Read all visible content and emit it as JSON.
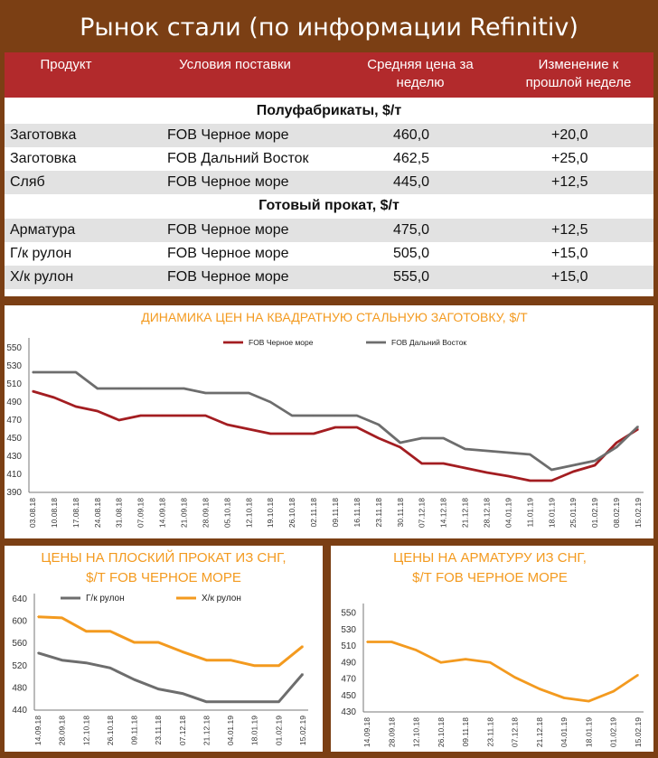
{
  "title": "Рынок стали (по информации Refinitiv)",
  "table": {
    "headers": [
      "Продукт",
      "Условия поставки",
      "Средняя цена за неделю",
      "Изменение к прошлой неделе"
    ],
    "sections": [
      {
        "label": "Полуфабрикаты, $/т",
        "rows": [
          [
            "Заготовка",
            "FOB Черное море",
            "460,0",
            "+20,0"
          ],
          [
            "Заготовка",
            "FOB Дальний Восток",
            "462,5",
            "+25,0"
          ],
          [
            "Сляб",
            "FOB Черное море",
            "445,0",
            "+12,5"
          ]
        ]
      },
      {
        "label": "Готовый прокат, $/т",
        "rows": [
          [
            "Арматура",
            "FOB Черное море",
            "475,0",
            "+12,5"
          ],
          [
            "Г/к рулон",
            "FOB Черное море",
            "505,0",
            "+15,0"
          ],
          [
            "Х/к рулон",
            "FOB Черное море",
            "555,0",
            "+15,0"
          ]
        ]
      }
    ]
  },
  "colors": {
    "header_red": "#b22a2c",
    "orange": "#f39a1f",
    "dark_red": "#a31d21",
    "gray": "#6d6d6d",
    "frame": "#7b3f14"
  },
  "chart_data": [
    {
      "type": "line",
      "title": "ДИНАМИКА ЦЕН НА КВАДРАТНУЮ СТАЛЬНУЮ ЗАГОТОВКУ, $/Т",
      "x": [
        "03.08.18",
        "10.08.18",
        "17.08.18",
        "24.08.18",
        "31.08.18",
        "07.09.18",
        "14.09.18",
        "21.09.18",
        "28.09.18",
        "05.10.18",
        "12.10.18",
        "19.10.18",
        "26.10.18",
        "02.11.18",
        "09.11.18",
        "16.11.18",
        "23.11.18",
        "30.11.18",
        "07.12.18",
        "14.12.18",
        "21.12.18",
        "28.12.18",
        "04.01.19",
        "11.01.19",
        "18.01.19",
        "25.01.19",
        "01.02.19",
        "08.02.19",
        "15.02.19"
      ],
      "yticks": [
        390,
        410,
        430,
        450,
        470,
        490,
        510,
        530,
        550
      ],
      "ylim": [
        390,
        555
      ],
      "legend_position": "top",
      "series": [
        {
          "name": "FOB Черное море",
          "color": "#a31d21",
          "values": [
            502,
            495,
            485,
            480,
            470,
            475,
            475,
            475,
            475,
            465,
            460,
            455,
            455,
            455,
            462,
            462,
            450,
            440,
            422,
            422,
            417,
            412,
            408,
            403,
            403,
            413,
            420,
            445,
            460
          ]
        },
        {
          "name": "FOB Дальний Восток",
          "color": "#6d6d6d",
          "values": [
            523,
            523,
            523,
            505,
            505,
            505,
            505,
            505,
            500,
            500,
            500,
            490,
            475,
            475,
            475,
            475,
            465,
            445,
            450,
            450,
            438,
            436,
            434,
            432,
            415,
            420,
            425,
            440,
            463
          ]
        }
      ]
    },
    {
      "type": "line",
      "title": "ЦЕНЫ НА ПЛОСКИЙ ПРОКАТ ИЗ СНГ, $/Т FOB ЧЕРНОЕ МОРЕ",
      "x": [
        "14.09.18",
        "28.09.18",
        "12.10.18",
        "26.10.18",
        "09.11.18",
        "23.11.18",
        "07.12.18",
        "21.12.18",
        "04.01.19",
        "18.01.19",
        "01.02.19",
        "15.02.19"
      ],
      "yticks": [
        440,
        480,
        520,
        560,
        600,
        640
      ],
      "ylim": [
        440,
        640
      ],
      "legend_position": "top",
      "series": [
        {
          "name": "Г/к рулон",
          "color": "#6d6d6d",
          "values": [
            543,
            530,
            525,
            516,
            495,
            478,
            470,
            455,
            455,
            455,
            455,
            505
          ]
        },
        {
          "name": "Х/к рулон",
          "color": "#f39a1f",
          "values": [
            608,
            606,
            582,
            582,
            562,
            562,
            545,
            530,
            530,
            520,
            520,
            555
          ]
        }
      ]
    },
    {
      "type": "line",
      "title": "ЦЕНЫ НА АРМАТУРУ ИЗ СНГ, $/Т FOB ЧЕРНОЕ МОРЕ",
      "x": [
        "14.09.18",
        "28.09.18",
        "12.10.18",
        "26.10.18",
        "09.11.18",
        "23.11.18",
        "07.12.18",
        "21.12.18",
        "04.01.19",
        "18.01.19",
        "01.02.19",
        "15.02.19"
      ],
      "yticks": [
        430,
        450,
        470,
        490,
        510,
        530,
        550
      ],
      "ylim": [
        430,
        555
      ],
      "series": [
        {
          "color": "#f39a1f",
          "values": [
            515,
            515,
            505,
            490,
            494,
            490,
            472,
            458,
            447,
            443,
            455,
            475
          ]
        }
      ]
    }
  ]
}
